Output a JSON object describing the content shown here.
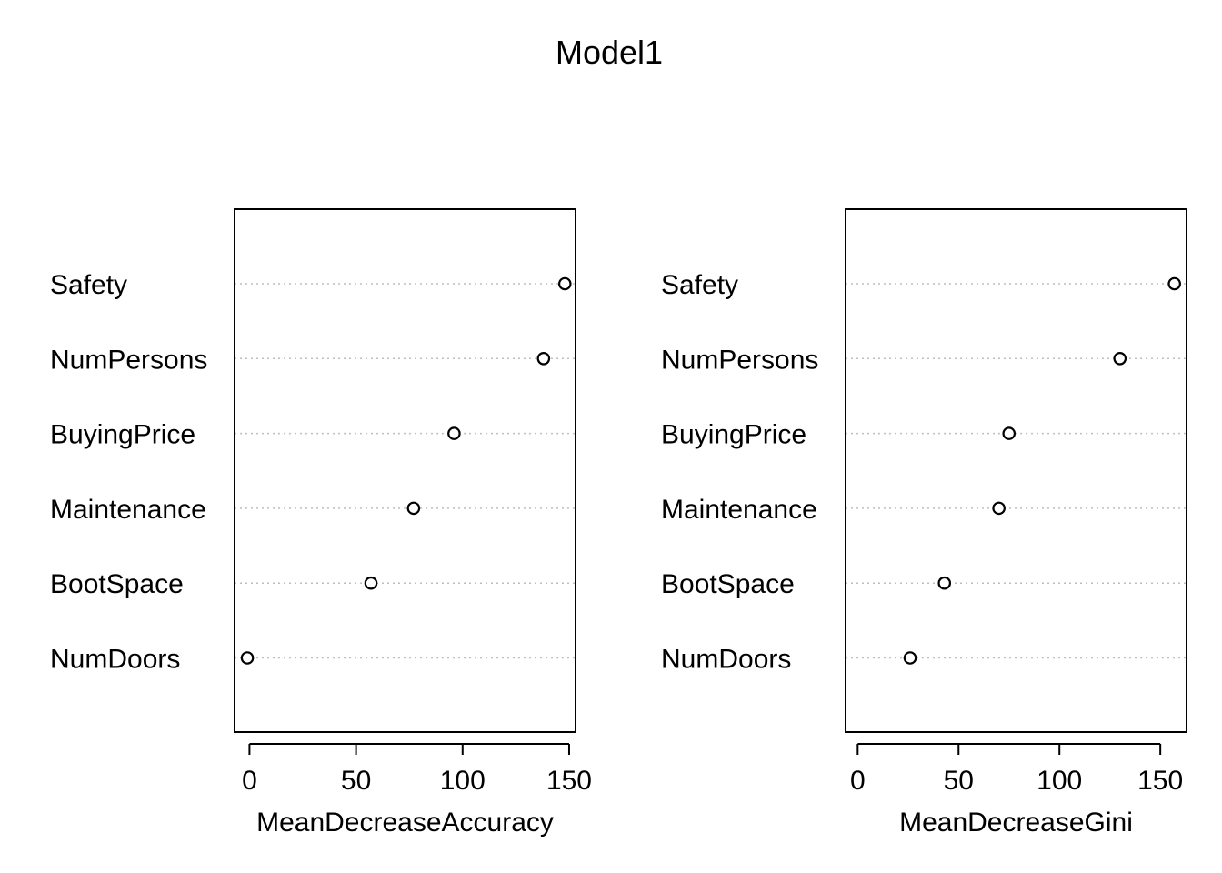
{
  "title": "Model1",
  "chart_data": [
    {
      "type": "scatter",
      "style": "dotchart",
      "categories": [
        "Safety",
        "NumPersons",
        "BuyingPrice",
        "Maintenance",
        "BootSpace",
        "NumDoors"
      ],
      "values": [
        148,
        138,
        96,
        77,
        57,
        -1
      ],
      "xlabel": "MeanDecreaseAccuracy",
      "ylabel": "",
      "xlim": [
        -7,
        153
      ],
      "xticks": [
        0,
        50,
        100,
        150
      ],
      "grid": false
    },
    {
      "type": "scatter",
      "style": "dotchart",
      "categories": [
        "Safety",
        "NumPersons",
        "BuyingPrice",
        "Maintenance",
        "BootSpace",
        "NumDoors"
      ],
      "values": [
        157,
        130,
        75,
        70,
        43,
        26
      ],
      "xlabel": "MeanDecreaseGini",
      "ylabel": "",
      "xlim": [
        -6,
        163
      ],
      "xticks": [
        0,
        50,
        100,
        150
      ],
      "grid": false
    }
  ]
}
